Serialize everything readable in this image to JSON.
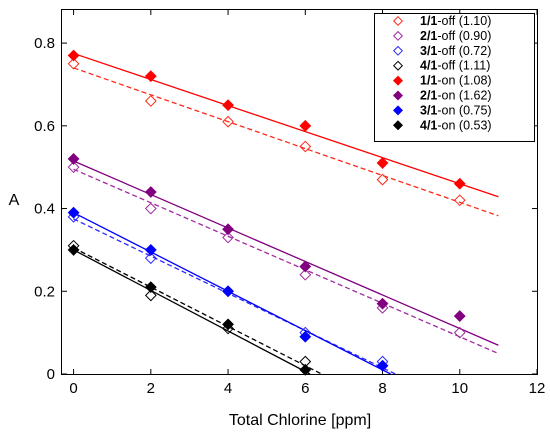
{
  "chart_data": {
    "type": "scatter",
    "xlabel": "Total Chlorine [ppm]",
    "ylabel": "A",
    "xlim": [
      -0.3,
      12
    ],
    "ylim": [
      0,
      0.88
    ],
    "xticks": [
      0,
      2,
      4,
      6,
      8,
      10,
      12
    ],
    "yticks": [
      0,
      0.2,
      0.4,
      0.6,
      0.8
    ],
    "xtick_labels": [
      "0",
      "2",
      "4",
      "6",
      "8",
      "10",
      "12"
    ],
    "ytick_labels": [
      "0",
      "0.2",
      "0.4",
      "0.6",
      "0.8"
    ],
    "legend_position": "top-right",
    "grid": false,
    "series": [
      {
        "name": "1/1-off (1.10)",
        "ratio": "1/1",
        "suffix": "-off (1.10)",
        "color": "#ff2a1a",
        "marker": "open-diamond",
        "line": "dashed",
        "x": [
          0,
          2,
          4,
          6,
          8,
          10
        ],
        "values": [
          0.75,
          0.66,
          0.61,
          0.55,
          0.47,
          0.42
        ],
        "fit": [
          0.74,
          -0.0325
        ]
      },
      {
        "name": "2/1-off (0.90)",
        "ratio": "2/1",
        "suffix": "-off (0.90)",
        "color": "#a02aa0",
        "marker": "open-diamond",
        "line": "dashed",
        "x": [
          0,
          2,
          4,
          6,
          8,
          10
        ],
        "values": [
          0.5,
          0.4,
          0.33,
          0.24,
          0.16,
          0.1
        ],
        "fit": [
          0.495,
          -0.0405
        ]
      },
      {
        "name": "3/1-off (0.72)",
        "ratio": "3/1",
        "suffix": "-off (0.72)",
        "color": "#2a2aff",
        "marker": "open-diamond",
        "line": "dashed",
        "x": [
          0,
          2,
          4,
          6,
          8
        ],
        "values": [
          0.38,
          0.28,
          0.2,
          0.1,
          0.03
        ],
        "fit": [
          0.375,
          -0.045
        ]
      },
      {
        "name": "4/1-off (1.11)",
        "ratio": "4/1",
        "suffix": "-off (1.11)",
        "color": "#000000",
        "marker": "open-diamond",
        "line": "dashed",
        "x": [
          0,
          2,
          4,
          6
        ],
        "values": [
          0.31,
          0.19,
          0.11,
          0.03
        ],
        "fit": [
          0.305,
          -0.0475
        ]
      },
      {
        "name": "1/1-on (1.08)",
        "ratio": "1/1",
        "suffix": "-on (1.08)",
        "color": "#ff0000",
        "marker": "filled-diamond",
        "line": "solid",
        "x": [
          0,
          2,
          4,
          6,
          8,
          10
        ],
        "values": [
          0.77,
          0.72,
          0.65,
          0.6,
          0.51,
          0.46
        ],
        "fit": [
          0.775,
          -0.0315
        ]
      },
      {
        "name": "2/1-on (1.62)",
        "ratio": "2/1",
        "suffix": "-on (1.62)",
        "color": "#800080",
        "marker": "filled-diamond",
        "line": "solid",
        "x": [
          0,
          2,
          4,
          6,
          8,
          10
        ],
        "values": [
          0.52,
          0.44,
          0.35,
          0.26,
          0.17,
          0.14
        ],
        "fit": [
          0.515,
          -0.0405
        ]
      },
      {
        "name": "3/1-on (0.75)",
        "ratio": "3/1",
        "suffix": "-on (0.75)",
        "color": "#0000ff",
        "marker": "filled-diamond",
        "line": "solid",
        "x": [
          0,
          2,
          4,
          6,
          8
        ],
        "values": [
          0.39,
          0.3,
          0.2,
          0.09,
          0.02
        ],
        "fit": [
          0.39,
          -0.0475
        ]
      },
      {
        "name": "4/1-on (0.53)",
        "ratio": "4/1",
        "suffix": "-on (0.53)",
        "color": "#000000",
        "marker": "filled-diamond",
        "line": "solid",
        "x": [
          0,
          2,
          4,
          6
        ],
        "values": [
          0.3,
          0.21,
          0.12,
          0.01
        ],
        "fit": [
          0.3,
          -0.049
        ]
      }
    ]
  }
}
